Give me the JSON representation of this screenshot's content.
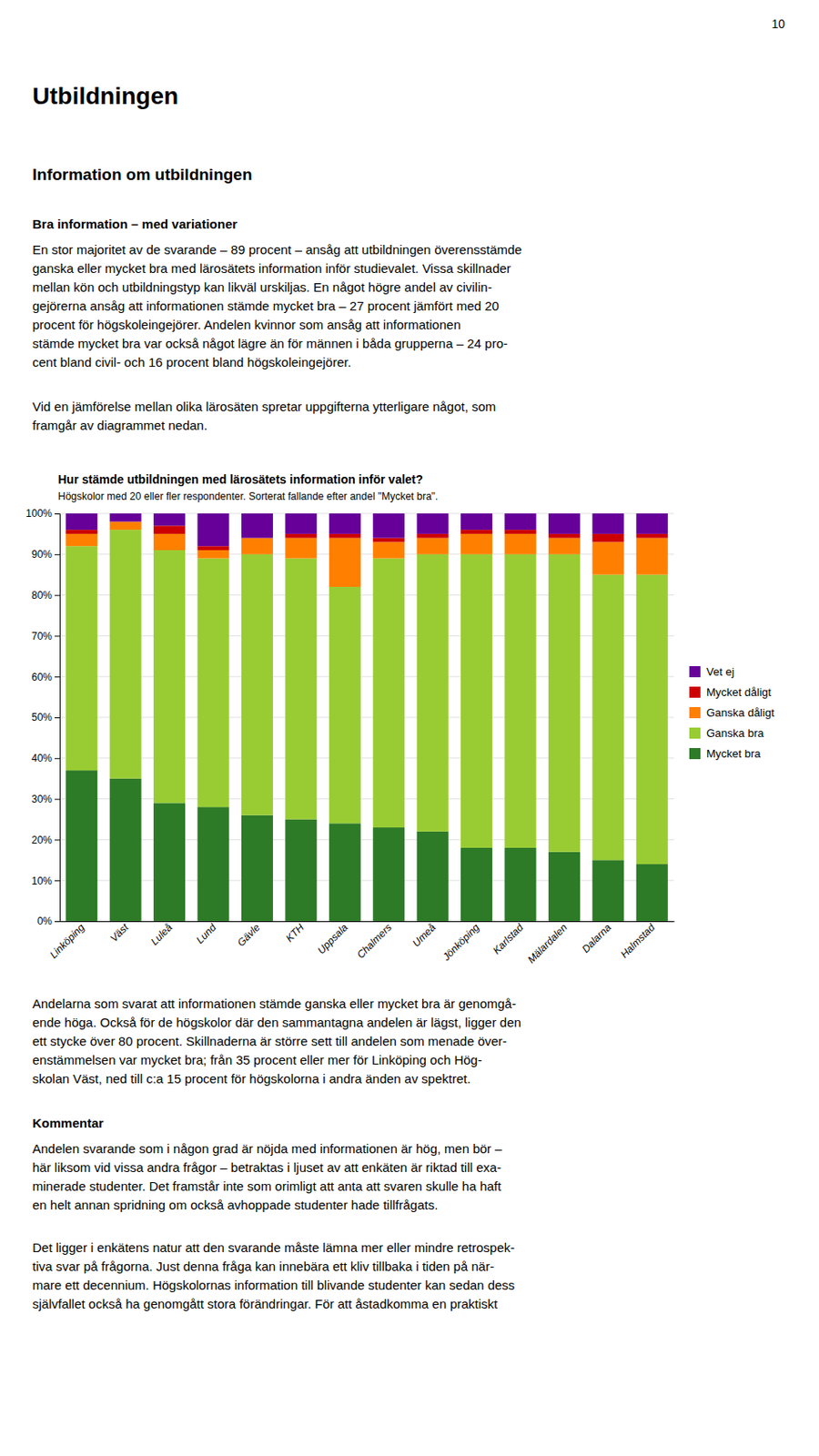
{
  "page_number": "10",
  "main_title": "Utbildningen",
  "section_title": "Information om utbildningen",
  "bold_intro": "Bra information – med variationer",
  "para1": [
    "En stor majoritet av de svarande – 89 procent – ansåg att utbildningen överensstämde",
    "ganska eller mycket bra med lärosätets information inför studievalet. Vissa skillnader",
    "mellan kön och utbildningstyp kan likväl urskiljas. En något högre andel av civilin-",
    "gejörerna ansåg att informationen stämde mycket bra – 27 procent jämfört med 20",
    "procent för högskoleingejörer. Andelen kvinnor som ansåg att informationen",
    "stämde mycket bra var också något lägre än för männen i båda grupperna – 24 pro-",
    "cent bland civil- och 16 procent bland högskoleingejörer."
  ],
  "para2": [
    "Vid en jämförelse mellan olika lärosäten spretar uppgifterna ytterligare något, som",
    "framgår av diagrammet nedan."
  ],
  "after_chart": [
    "Andelarna som svarat att informationen stämde ganska eller mycket bra är genomgå-",
    "ende höga. Också för de högskolor där den sammantagna andelen är lägst, ligger den",
    "ett stycke över 80 procent. Skillnaderna är större sett till andelen som menade över-",
    "enstämmelsen var mycket bra; från 35 procent eller mer för Linköping och Hög-",
    "skolan Väst, ned till c:a 15 procent för högskolorna i andra änden av spektret."
  ],
  "kommentar_title": "Kommentar",
  "kommentar1": [
    "Andelen svarande som i någon grad är nöjda med informationen är hög, men bör –",
    "här liksom vid vissa andra frågor – betraktas i ljuset av att enkäten är riktad till exa-",
    "minerade studenter. Det framstår inte som orimligt att anta att svaren skulle ha haft",
    "en helt annan spridning om också avhoppade studenter hade tillfrågats."
  ],
  "kommentar2": [
    "Det ligger i enkätens natur att den svarande måste lämna mer eller mindre retrospek-",
    "tiva svar på frågorna. Just denna fråga kan innebära ett kliv tillbaka i tiden på när-",
    "mare ett decennium. Högskolornas information till blivande studenter kan sedan dess",
    "självfallet också ha genomgått stora förändringar. För att åstadkomma en praktiskt"
  ],
  "chart_data": {
    "type": "bar",
    "stacked": true,
    "title": "Hur stämde utbildningen med lärosätets information inför valet?",
    "subtitle": "Högskolor med 20 eller fler respondenter. Sorterat fallande efter andel \"Mycket bra\".",
    "categories": [
      "Linköping",
      "Väst",
      "Luleå",
      "Lund",
      "Gävle",
      "KTH",
      "Uppsala",
      "Chalmers",
      "Umeå",
      "Jönköping",
      "Karlstad",
      "Mälardalen",
      "Dalarna",
      "Halmstad"
    ],
    "series": [
      {
        "name": "Mycket bra",
        "color": "#2d7a27",
        "values": [
          37,
          35,
          29,
          28,
          26,
          25,
          24,
          23,
          22,
          18,
          18,
          17,
          15,
          14
        ]
      },
      {
        "name": "Ganska bra",
        "color": "#99cc33",
        "values": [
          55,
          61,
          62,
          61,
          64,
          64,
          58,
          66,
          68,
          72,
          72,
          73,
          70,
          71
        ]
      },
      {
        "name": "Ganska dåligt",
        "color": "#ff8000",
        "values": [
          3,
          2,
          4,
          2,
          4,
          5,
          12,
          4,
          4,
          5,
          5,
          4,
          8,
          9
        ]
      },
      {
        "name": "Mycket dåligt",
        "color": "#cc0000",
        "values": [
          1,
          0,
          2,
          1,
          0,
          1,
          1,
          1,
          1,
          1,
          1,
          1,
          2,
          1
        ]
      },
      {
        "name": "Vet ej",
        "color": "#660099",
        "values": [
          4,
          2,
          3,
          8,
          6,
          5,
          5,
          6,
          5,
          4,
          4,
          5,
          5,
          5
        ]
      }
    ],
    "ylim": [
      0,
      100
    ],
    "yticks": [
      {
        "value": 0,
        "label": "0%"
      },
      {
        "value": 10,
        "label": "10%"
      },
      {
        "value": 20,
        "label": "20%"
      },
      {
        "value": 30,
        "label": "30%"
      },
      {
        "value": 40,
        "label": "40%"
      },
      {
        "value": 50,
        "label": "50%"
      },
      {
        "value": 60,
        "label": "60%"
      },
      {
        "value": 70,
        "label": "70%"
      },
      {
        "value": 80,
        "label": "80%"
      },
      {
        "value": 90,
        "label": "90%"
      },
      {
        "value": 100,
        "label": "100%"
      }
    ],
    "grid": true,
    "legend": "right"
  }
}
